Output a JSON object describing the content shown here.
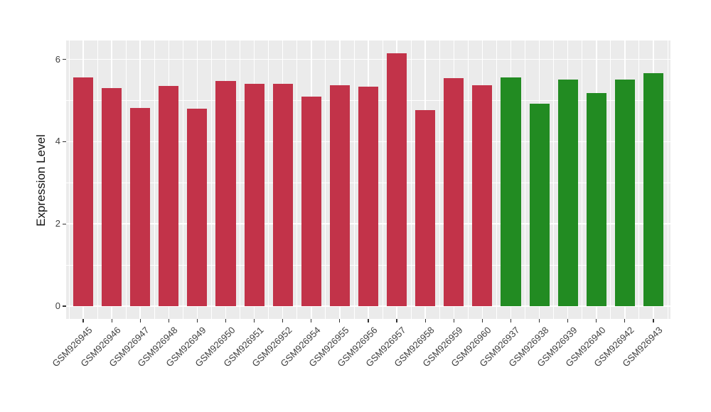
{
  "chart_data": {
    "type": "bar",
    "title": "",
    "xlabel": "",
    "ylabel": "Expression Level",
    "ylim": [
      -0.31,
      6.46
    ],
    "yticks": [
      0,
      2,
      4,
      6
    ],
    "ytick_labels": [
      "0",
      "2",
      "4",
      "6"
    ],
    "yticks_minor": [
      1,
      3,
      5
    ],
    "grid": "major and minor, white lines on gray panel",
    "legend": "none",
    "categories": [
      "GSM926945",
      "GSM926946",
      "GSM926947",
      "GSM926948",
      "GSM926949",
      "GSM926950",
      "GSM926951",
      "GSM926952",
      "GSM926954",
      "GSM926955",
      "GSM926956",
      "GSM926957",
      "GSM926958",
      "GSM926959",
      "GSM926960",
      "GSM926937",
      "GSM926938",
      "GSM926939",
      "GSM926940",
      "GSM926942",
      "GSM926943"
    ],
    "values": [
      5.57,
      5.3,
      4.82,
      5.36,
      4.81,
      5.48,
      5.4,
      5.41,
      5.1,
      5.37,
      5.34,
      6.15,
      4.76,
      5.54,
      5.37,
      5.56,
      4.92,
      5.51,
      5.19,
      5.51,
      5.66
    ],
    "bar_colors": [
      "#C23349",
      "#C23349",
      "#C23349",
      "#C23349",
      "#C23349",
      "#C23349",
      "#C23349",
      "#C23349",
      "#C23349",
      "#C23349",
      "#C23349",
      "#C23349",
      "#C23349",
      "#C23349",
      "#C23349",
      "#228B22",
      "#228B22",
      "#228B22",
      "#228B22",
      "#228B22",
      "#228B22"
    ],
    "palette": {
      "red_group": "#C23349",
      "green_group": "#228B22"
    },
    "panel_background": "#EBEBEB",
    "gridline_color": "#FFFFFF",
    "tick_mark_color": "#333333",
    "axis_text_color": "#404040",
    "x_label_angle_degrees": 45
  }
}
